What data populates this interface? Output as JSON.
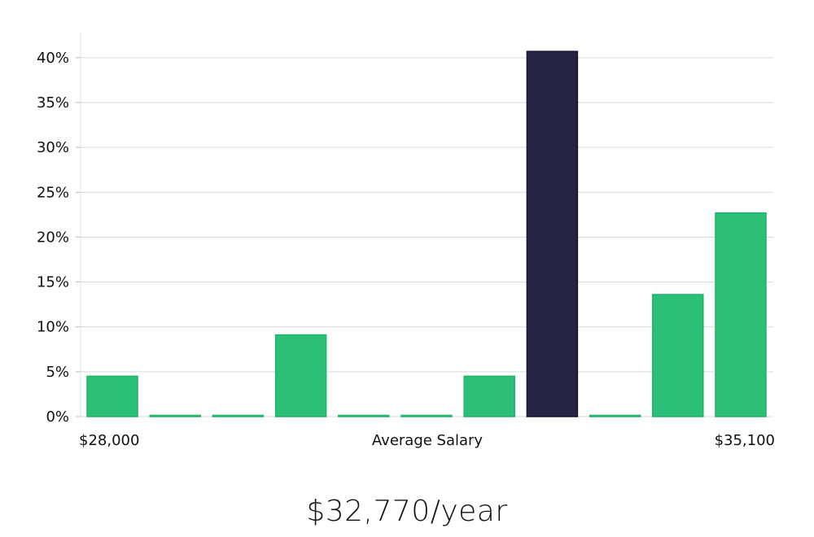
{
  "chart_data": {
    "type": "bar",
    "categories": [
      "bin1",
      "bin2",
      "bin3",
      "bin4",
      "bin5",
      "bin6",
      "bin7",
      "bin8",
      "bin9",
      "bin10",
      "bin11"
    ],
    "values": [
      4.5,
      0,
      0,
      9.1,
      0,
      0,
      4.5,
      40.7,
      0,
      13.6,
      22.7
    ],
    "highlight_index": 7,
    "colors": {
      "bar": "#2bbf77",
      "bar_edge": "#1fb36b",
      "highlight": "#262445",
      "highlight_edge": "#151331",
      "grid": "#d9d9d9"
    },
    "ylim": [
      0,
      42.8
    ],
    "yticks": [
      0,
      5,
      10,
      15,
      20,
      25,
      30,
      35,
      40
    ],
    "ytick_labels": [
      "0%",
      "5%",
      "10%",
      "15%",
      "20%",
      "25%",
      "30%",
      "35%",
      "40%"
    ],
    "grid": true,
    "x_min_label": "$28,000",
    "x_max_label": "$35,100",
    "xlabel": "Average Salary"
  },
  "summary": {
    "salary_text": "$32,770/year"
  }
}
